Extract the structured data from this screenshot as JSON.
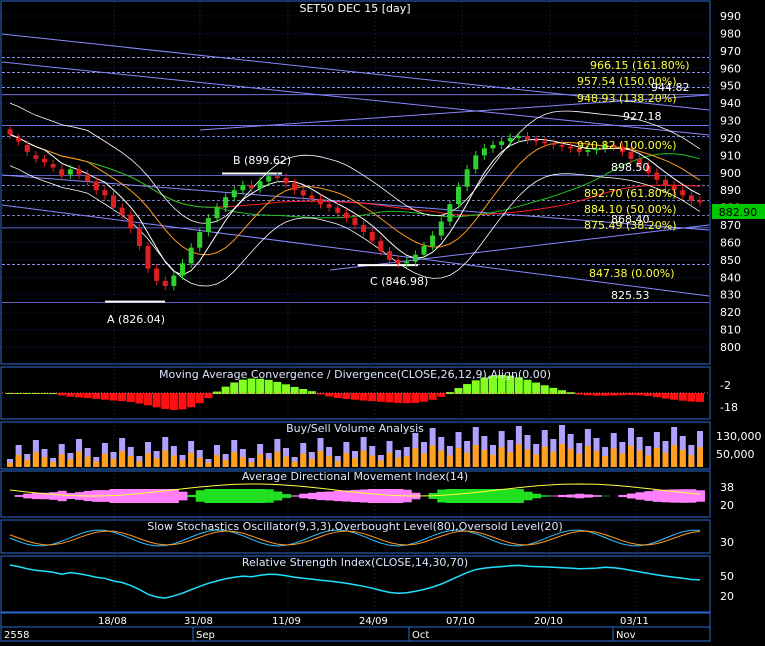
{
  "title": "SET50 DEC 15   [day]",
  "last_price": "882.90",
  "colors": {
    "background": "#000000",
    "panel_border": "#2a6bd1",
    "grid": "#1a2f55",
    "axis_text": "#ffffff",
    "bull": "#2fd12f",
    "bear": "#e02020",
    "fib": "#ffff40",
    "trend": "#8888ff",
    "price_tag": "#00c800"
  },
  "main_y_ticks": [
    "990",
    "980",
    "970",
    "960",
    "950",
    "940",
    "930",
    "920",
    "910",
    "900",
    "890",
    "880",
    "870",
    "860",
    "850",
    "840",
    "830",
    "820",
    "810",
    "800"
  ],
  "x_ticks": [
    "18/08",
    "31/08",
    "11/09",
    "24/09",
    "07/10",
    "20/10",
    "03/11"
  ],
  "months": [
    "2558",
    "Sep",
    "Oct",
    "Nov"
  ],
  "labels": {
    "A": "A (826.04)",
    "B": "B (899.62)",
    "C": "C (846.98)",
    "fib": [
      "966.15 (161.80%)",
      "957.54 (150.00%)",
      "948.93 (138.20%)",
      "944.82",
      "927.18",
      "920.82 (100.00%)",
      "898.50",
      "892.70 (61.80%)",
      "884.10 (50.00%)",
      "875.49 (38.20%)",
      "868.40",
      "847.38 (0.00%)",
      "825.53"
    ]
  },
  "panels": {
    "macd": {
      "title": "Moving Average Convergence / Divergence(CLOSE,26,12,9),Align(0.00)",
      "ticks": [
        "-2",
        "-18"
      ]
    },
    "volume": {
      "title": "Buy/Sell Volume Analysis",
      "ticks": [
        "130,000",
        "50,000"
      ]
    },
    "adx": {
      "title": "Average Directional Movement Index(14)",
      "ticks": [
        "38",
        "20"
      ]
    },
    "stoch": {
      "title": "Slow Stochastics Oscillator(9,3,3),Overbought Level(80),Oversold Level(20)",
      "ticks": [
        "30"
      ]
    },
    "rsi": {
      "title": "Relative Strength Index(CLOSE,14,30,70)",
      "ticks": [
        "50",
        "20"
      ]
    }
  },
  "chart_data": {
    "type": "candlestick",
    "title": "SET50 DEC 15   [day]",
    "y_range": [
      795,
      995
    ],
    "close": [
      922,
      918,
      912,
      908,
      906,
      903,
      898,
      902,
      899,
      895,
      890,
      887,
      880,
      876,
      868,
      858,
      845,
      838,
      835,
      841,
      848,
      857,
      866,
      874,
      880,
      886,
      890,
      893,
      891,
      895,
      898,
      897,
      894,
      890,
      887,
      885,
      882,
      880,
      877,
      874,
      870,
      866,
      861,
      855,
      850,
      848,
      849,
      853,
      858,
      864,
      872,
      882,
      892,
      902,
      910,
      914,
      916,
      918,
      920,
      921,
      919,
      918,
      917,
      916,
      915,
      914,
      912,
      913,
      914,
      916,
      915,
      912,
      908,
      904,
      900,
      896,
      893,
      890,
      887,
      884,
      883
    ],
    "open": [
      925,
      920,
      916,
      910,
      908,
      905,
      902,
      899,
      902,
      899,
      895,
      890,
      887,
      880,
      876,
      868,
      858,
      845,
      838,
      835,
      841,
      848,
      857,
      866,
      874,
      880,
      886,
      890,
      893,
      891,
      895,
      898,
      897,
      894,
      890,
      887,
      885,
      882,
      880,
      877,
      874,
      870,
      866,
      861,
      855,
      850,
      848,
      849,
      853,
      858,
      864,
      872,
      882,
      892,
      902,
      910,
      914,
      916,
      918,
      920,
      921,
      919,
      918,
      917,
      916,
      915,
      914,
      912,
      913,
      914,
      916,
      915,
      912,
      908,
      904,
      900,
      896,
      893,
      890,
      887,
      884
    ],
    "A": 826.04,
    "B": 899.62,
    "C": 846.98,
    "last": 882.9,
    "fibonacci": [
      {
        "value": 966.15,
        "label": "161.80%"
      },
      {
        "value": 957.54,
        "label": "150.00%"
      },
      {
        "value": 948.93,
        "label": "138.20%"
      },
      {
        "value": 920.82,
        "label": "100.00%"
      },
      {
        "value": 892.7,
        "label": "61.80%"
      },
      {
        "value": 884.1,
        "label": "50.00%"
      },
      {
        "value": 875.49,
        "label": "38.20%"
      },
      {
        "value": 847.38,
        "label": "0.00%"
      }
    ],
    "levels": [
      944.82,
      927.18,
      898.5,
      868.4,
      825.53
    ]
  }
}
